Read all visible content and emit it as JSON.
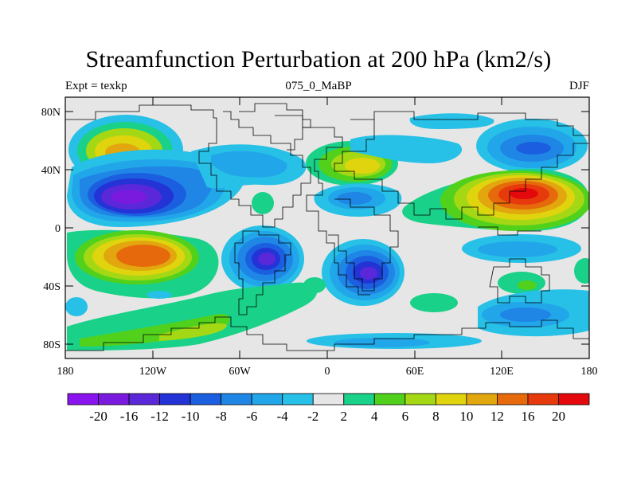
{
  "title": "Streamfunction Perturbation at 200 hPa (km2/s)",
  "left_label": "Expt = texkp",
  "center_label": "075_0_MaBP",
  "right_label": "DJF",
  "lat_ticks": [
    "80N",
    "40N",
    "0",
    "40S",
    "80S"
  ],
  "lon_ticks": [
    "180",
    "120W",
    "60W",
    "0",
    "60E",
    "120E",
    "180"
  ],
  "colorbar": {
    "labels": [
      "-20",
      "-16",
      "-12",
      "-10",
      "-8",
      "-6",
      "-4",
      "-2",
      "2",
      "4",
      "6",
      "8",
      "10",
      "12",
      "16",
      "20"
    ],
    "colors": [
      "#8a14ee",
      "#7a1adf",
      "#5a28d8",
      "#2433d6",
      "#1b5fe0",
      "#1f86e6",
      "#22a6ea",
      "#27c0e6",
      "#e6e6e6",
      "#19d188",
      "#52d11c",
      "#a4d814",
      "#e0d40e",
      "#e2a60e",
      "#e66a0c",
      "#e73a0c",
      "#e3090c"
    ]
  },
  "colors": {
    "land_outline": "#000000",
    "background": "#e6e6e6"
  }
}
